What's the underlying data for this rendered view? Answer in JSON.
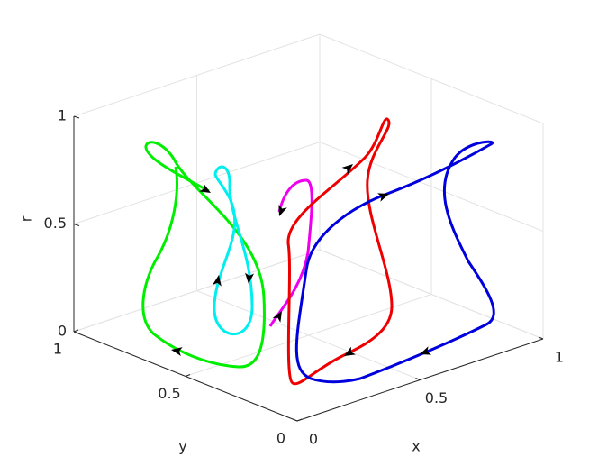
{
  "chart_data": {
    "type": "line3d",
    "x_label": "x",
    "y_label": "y",
    "z_label": "r",
    "xlim": [
      0,
      1
    ],
    "ylim": [
      0,
      1
    ],
    "zlim": [
      0,
      1
    ],
    "xticks": [
      0,
      0.5,
      1
    ],
    "yticks": [
      0,
      0.5,
      1
    ],
    "zticks": [
      0,
      0.5,
      1
    ],
    "grid": true
  }
}
